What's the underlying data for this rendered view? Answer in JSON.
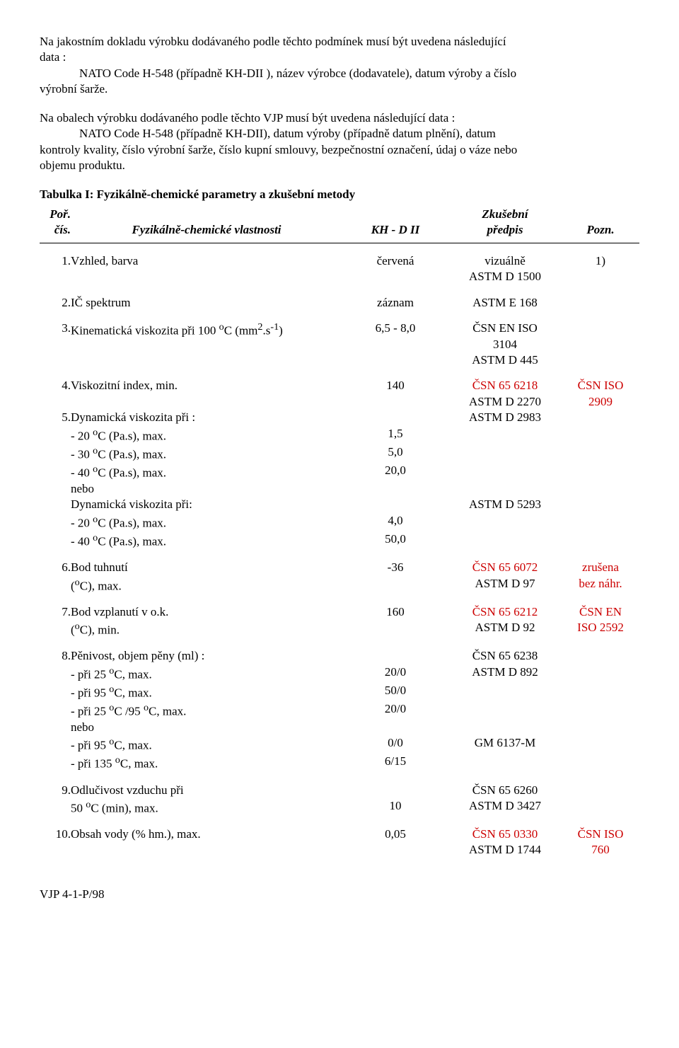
{
  "para1": {
    "l1": "Na  jakostním  dokladu  výrobku  dodávaného  podle  těchto  podmínek  musí  být  uvedena  následující",
    "l2": "data :",
    "l3": "NATO Code H-548 (případně KH-DII ), název výrobce (dodavatele), datum výroby a číslo",
    "l4": "výrobní šarže."
  },
  "para2": {
    "l1": "Na obalech výrobku dodávaného podle těchto VJP musí být uvedena následující data :",
    "l2": "NATO Code H-548 (případně KH-DII), datum výroby (případně datum plnění), datum",
    "l3": "kontroly kvality, číslo výrobní šarže, číslo kupní smlouvy, bezpečnostní označení, údaj o váze nebo",
    "l4": "objemu produktu."
  },
  "table_title": "Tabulka I: Fyzikálně-chemické parametry a zkušební metody",
  "hdr": {
    "num1": "Poř.",
    "num2": "čís.",
    "name": "Fyzikálně-chemické vlastnosti",
    "kh": "KH - D II",
    "zku1": "Zkušební",
    "zku2": "předpis",
    "pozn": "Pozn."
  },
  "r1": {
    "n": "1.",
    "name": "Vzhled, barva",
    "kh": "červená",
    "zku_a": "vizuálně",
    "zku_b": "ASTM D 1500",
    "pozn": "1)"
  },
  "r2": {
    "n": "2.",
    "name": "IČ spektrum",
    "kh": "záznam",
    "zku_a": "ASTM E 168"
  },
  "r3": {
    "n": "3.",
    "name_a": "Kinematická viskozita při 100 ",
    "name_b": "C (mm",
    "name_c": ".s",
    "name_d": ")",
    "kh": "6,5 - 8,0",
    "zku_a": "ČSN EN ISO",
    "zku_b": "3104",
    "zku_c": "ASTM D 445"
  },
  "r4": {
    "n": "4.",
    "name": "Viskozitní index, min.",
    "kh": "140",
    "zku_a": "ČSN 65 6218",
    "zku_b": "ASTM D 2270",
    "pozn_a": "ČSN ISO",
    "pozn_b": "2909"
  },
  "r5": {
    "n": "5.",
    "name": "Dynamická viskozita při :",
    "zku_a": "ASTM D 2983",
    "sub1": "- 20 ",
    "sub1b": "C (Pa.s), max.",
    "v1": "1,5",
    "sub2": "- 30 ",
    "sub2b": "C (Pa.s), max.",
    "v2": "5,0",
    "sub3": "- 40 ",
    "sub3b": "C (Pa.s), max.",
    "v3": "20,0",
    "nebo": "nebo",
    "name2": "Dynamická viskozita při:",
    "zku_b": "ASTM D 5293",
    "sub4": "- 20 ",
    "sub4b": "C (Pa.s), max.",
    "v4": "4,0",
    "sub5": "- 40 ",
    "sub5b": "C (Pa.s), max.",
    "v5": "50,0"
  },
  "r6": {
    "n": "6.",
    "name_a": "Bod tuhnutí",
    "name_b": "(",
    "name_c": "C), max.",
    "kh": "-36",
    "zku_a": "ČSN 65 6072",
    "zku_b": "ASTM D 97",
    "pozn_a": "zrušena",
    "pozn_b": "bez náhr."
  },
  "r7": {
    "n": "7.",
    "name_a": "Bod vzplanutí v o.k.",
    "name_b": "(",
    "name_c": "C), min.",
    "kh": "160",
    "zku_a": "ČSN 65 6212",
    "zku_b": "ASTM D 92",
    "pozn_a": "ČSN EN",
    "pozn_b": "ISO 2592"
  },
  "r8": {
    "n": "8.",
    "name": "Pěnivost, objem pěny (ml) :",
    "zku_a": "ČSN 65 6238",
    "sub1": "- při 25 ",
    "sub1b": "C, max.",
    "v1": "20/0",
    "zku_b": "ASTM D 892",
    "sub2": "- při 95 ",
    "sub2b": "C, max.",
    "v2": "50/0",
    "sub3": "- při 25 ",
    "sub3b": "C /95 ",
    "sub3c": "C, max.",
    "v3": "20/0",
    "nebo": "nebo",
    "sub4": "- při 95 ",
    "sub4b": "C, max.",
    "v4": "0/0",
    "zku_c": "GM 6137-M",
    "sub5": "- při 135 ",
    "sub5b": "C, max.",
    "v5": "6/15"
  },
  "r9": {
    "n": "9.",
    "name_a": "Odlučivost vzduchu při",
    "name_b": "50 ",
    "name_c": "C (min), max.",
    "kh": "10",
    "zku_a": "ČSN 65 6260",
    "zku_b": "ASTM D 3427"
  },
  "r10": {
    "n": "10.",
    "name": "Obsah vody (% hm.), max.",
    "kh": "0,05",
    "zku_a": "ČSN 65 0330",
    "zku_b": "ASTM D 1744",
    "pozn_a": "ČSN ISO",
    "pozn_b": "760"
  },
  "footer": "VJP 4-1-P/98",
  "colors": {
    "red": "#cc0000",
    "text": "#000000",
    "bg": "#ffffff"
  }
}
